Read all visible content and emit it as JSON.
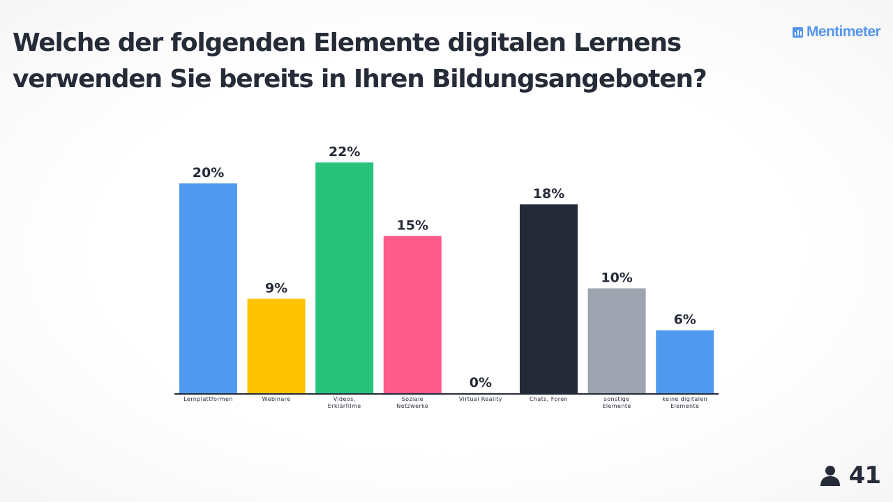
{
  "brand": {
    "name": "Mentimeter",
    "color": "#5595ee",
    "icon": "bar-chart-logo-icon"
  },
  "question": "Welche der folgenden Elemente digitalen Lernens verwenden Sie bereits in Ihren Bildungsangeboten?",
  "participants": {
    "icon": "person-icon",
    "count": "41"
  },
  "chart_data": {
    "type": "bar",
    "title": "",
    "xlabel": "",
    "ylabel": "",
    "ylim": [
      0,
      22
    ],
    "grid": false,
    "categories": [
      [
        "Lernplattformen"
      ],
      [
        "Webinare"
      ],
      [
        "Videos,",
        "Erklärfilme"
      ],
      [
        "Soziale",
        "Netzwerke"
      ],
      [
        "Virtual Reality"
      ],
      [
        "Chats, Foren"
      ],
      [
        "sonstige",
        "Elemente"
      ],
      [
        "keine digitalen",
        "Elemente"
      ]
    ],
    "values": [
      20,
      9,
      22,
      15,
      0,
      18,
      10,
      6
    ],
    "value_labels": [
      "20%",
      "9%",
      "22%",
      "15%",
      "0%",
      "18%",
      "10%",
      "6%"
    ],
    "colors": [
      "#4f9aef",
      "#fdc300",
      "#27c27c",
      "#ff5a8c",
      "#4f9aef",
      "#242a38",
      "#9ea3b0",
      "#4f9aef"
    ]
  }
}
